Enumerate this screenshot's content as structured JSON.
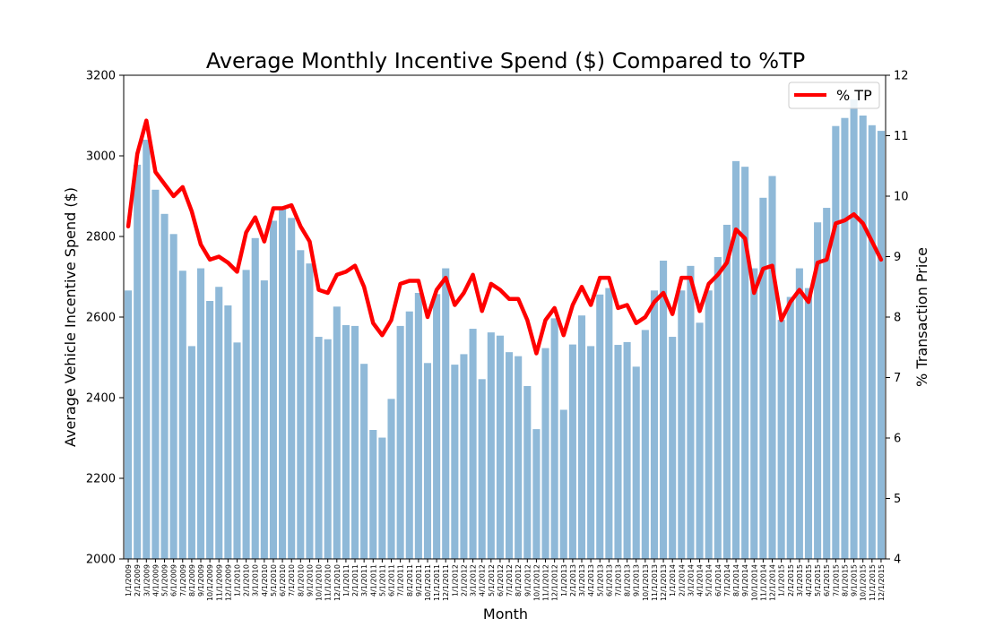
{
  "chart_data": {
    "type": "bar+line",
    "title": "Average Monthly Incentive Spend ($) Compared to %TP",
    "xlabel": "Month",
    "ylabel": "Average Vehicle Incentive Spend ($)",
    "y2label": "% Transaction Price",
    "ylim": [
      2000,
      3200
    ],
    "y2lim": [
      4,
      12
    ],
    "yticks": [
      2000,
      2200,
      2400,
      2600,
      2800,
      3000,
      3200
    ],
    "y2ticks": [
      4,
      5,
      6,
      7,
      8,
      9,
      10,
      11,
      12
    ],
    "legend_position": "top-right",
    "bar_color": "#8fb9d8",
    "line_color": "#ff0000",
    "categories": [
      "1/1/2009",
      "2/1/2009",
      "3/1/2009",
      "4/1/2009",
      "5/1/2009",
      "6/1/2009",
      "7/1/2009",
      "8/1/2009",
      "9/1/2009",
      "10/1/2009",
      "11/1/2009",
      "12/1/2009",
      "1/1/2010",
      "2/1/2010",
      "3/1/2010",
      "4/1/2010",
      "5/1/2010",
      "6/1/2010",
      "7/1/2010",
      "8/1/2010",
      "9/1/2010",
      "10/1/2010",
      "11/1/2010",
      "12/1/2010",
      "1/1/2011",
      "2/1/2011",
      "3/1/2011",
      "4/1/2011",
      "5/1/2011",
      "6/1/2011",
      "7/1/2011",
      "8/1/2011",
      "9/1/2011",
      "10/1/2011",
      "11/1/2011",
      "12/1/2011",
      "1/1/2012",
      "2/1/2012",
      "3/1/2012",
      "4/1/2012",
      "5/1/2012",
      "6/1/2012",
      "7/1/2012",
      "8/1/2012",
      "9/1/2012",
      "10/1/2012",
      "11/1/2012",
      "12/1/2012",
      "1/1/2013",
      "2/1/2013",
      "3/1/2013",
      "4/1/2013",
      "5/1/2013",
      "6/1/2013",
      "7/1/2013",
      "8/1/2013",
      "9/1/2013",
      "10/1/2013",
      "11/1/2013",
      "12/1/2013",
      "1/1/2014",
      "2/1/2014",
      "3/1/2014",
      "4/1/2014",
      "5/1/2014",
      "6/1/2014",
      "7/1/2014",
      "8/1/2014",
      "9/1/2014",
      "10/1/2014",
      "11/1/2014",
      "12/1/2014",
      "1/1/2015",
      "2/1/2015",
      "3/1/2015",
      "4/1/2015",
      "5/1/2015",
      "6/1/2015",
      "7/1/2015",
      "8/1/2015",
      "9/1/2015",
      "10/1/2015",
      "11/1/2015",
      "12/1/2015"
    ],
    "series": [
      {
        "kind": "bar",
        "axis": "left",
        "values": [
          2666,
          2978,
          3040,
          2916,
          2856,
          2806,
          2715,
          2528,
          2721,
          2640,
          2675,
          2629,
          2537,
          2717,
          2796,
          2691,
          2839,
          2869,
          2846,
          2766,
          2733,
          2551,
          2545,
          2626,
          2580,
          2578,
          2484,
          2320,
          2301,
          2397,
          2578,
          2614,
          2660,
          2486,
          2657,
          2721,
          2482,
          2508,
          2571,
          2446,
          2562,
          2554,
          2513,
          2503,
          2429,
          2322,
          2523,
          2597,
          2370,
          2532,
          2604,
          2528,
          2656,
          2672,
          2531,
          2538,
          2477,
          2568,
          2666,
          2740,
          2551,
          2666,
          2727,
          2586,
          2666,
          2749,
          2829,
          2987,
          2973,
          2721,
          2896,
          2950,
          2593,
          2650,
          2721,
          2672,
          2835,
          2871,
          3074,
          3094,
          3140,
          3100,
          3076,
          3062
        ]
      },
      {
        "kind": "line",
        "axis": "right",
        "name": "% TP",
        "values": [
          9.5,
          10.7,
          11.25,
          10.4,
          10.2,
          10.0,
          10.15,
          9.75,
          9.2,
          8.95,
          9.0,
          8.9,
          8.75,
          9.4,
          9.65,
          9.25,
          9.8,
          9.8,
          9.85,
          9.5,
          9.25,
          8.45,
          8.4,
          8.7,
          8.75,
          8.85,
          8.5,
          7.9,
          7.7,
          7.95,
          8.55,
          8.6,
          8.6,
          8.0,
          8.45,
          8.65,
          8.2,
          8.4,
          8.7,
          8.1,
          8.55,
          8.45,
          8.3,
          8.3,
          7.95,
          7.4,
          7.95,
          8.15,
          7.7,
          8.2,
          8.5,
          8.2,
          8.65,
          8.65,
          8.15,
          8.2,
          7.9,
          8.0,
          8.25,
          8.4,
          8.05,
          8.65,
          8.65,
          8.1,
          8.55,
          8.7,
          8.9,
          9.45,
          9.3,
          8.4,
          8.8,
          8.85,
          7.95,
          8.25,
          8.45,
          8.25,
          8.9,
          8.95,
          9.55,
          9.6,
          9.7,
          9.55,
          9.25,
          8.95
        ]
      }
    ]
  }
}
